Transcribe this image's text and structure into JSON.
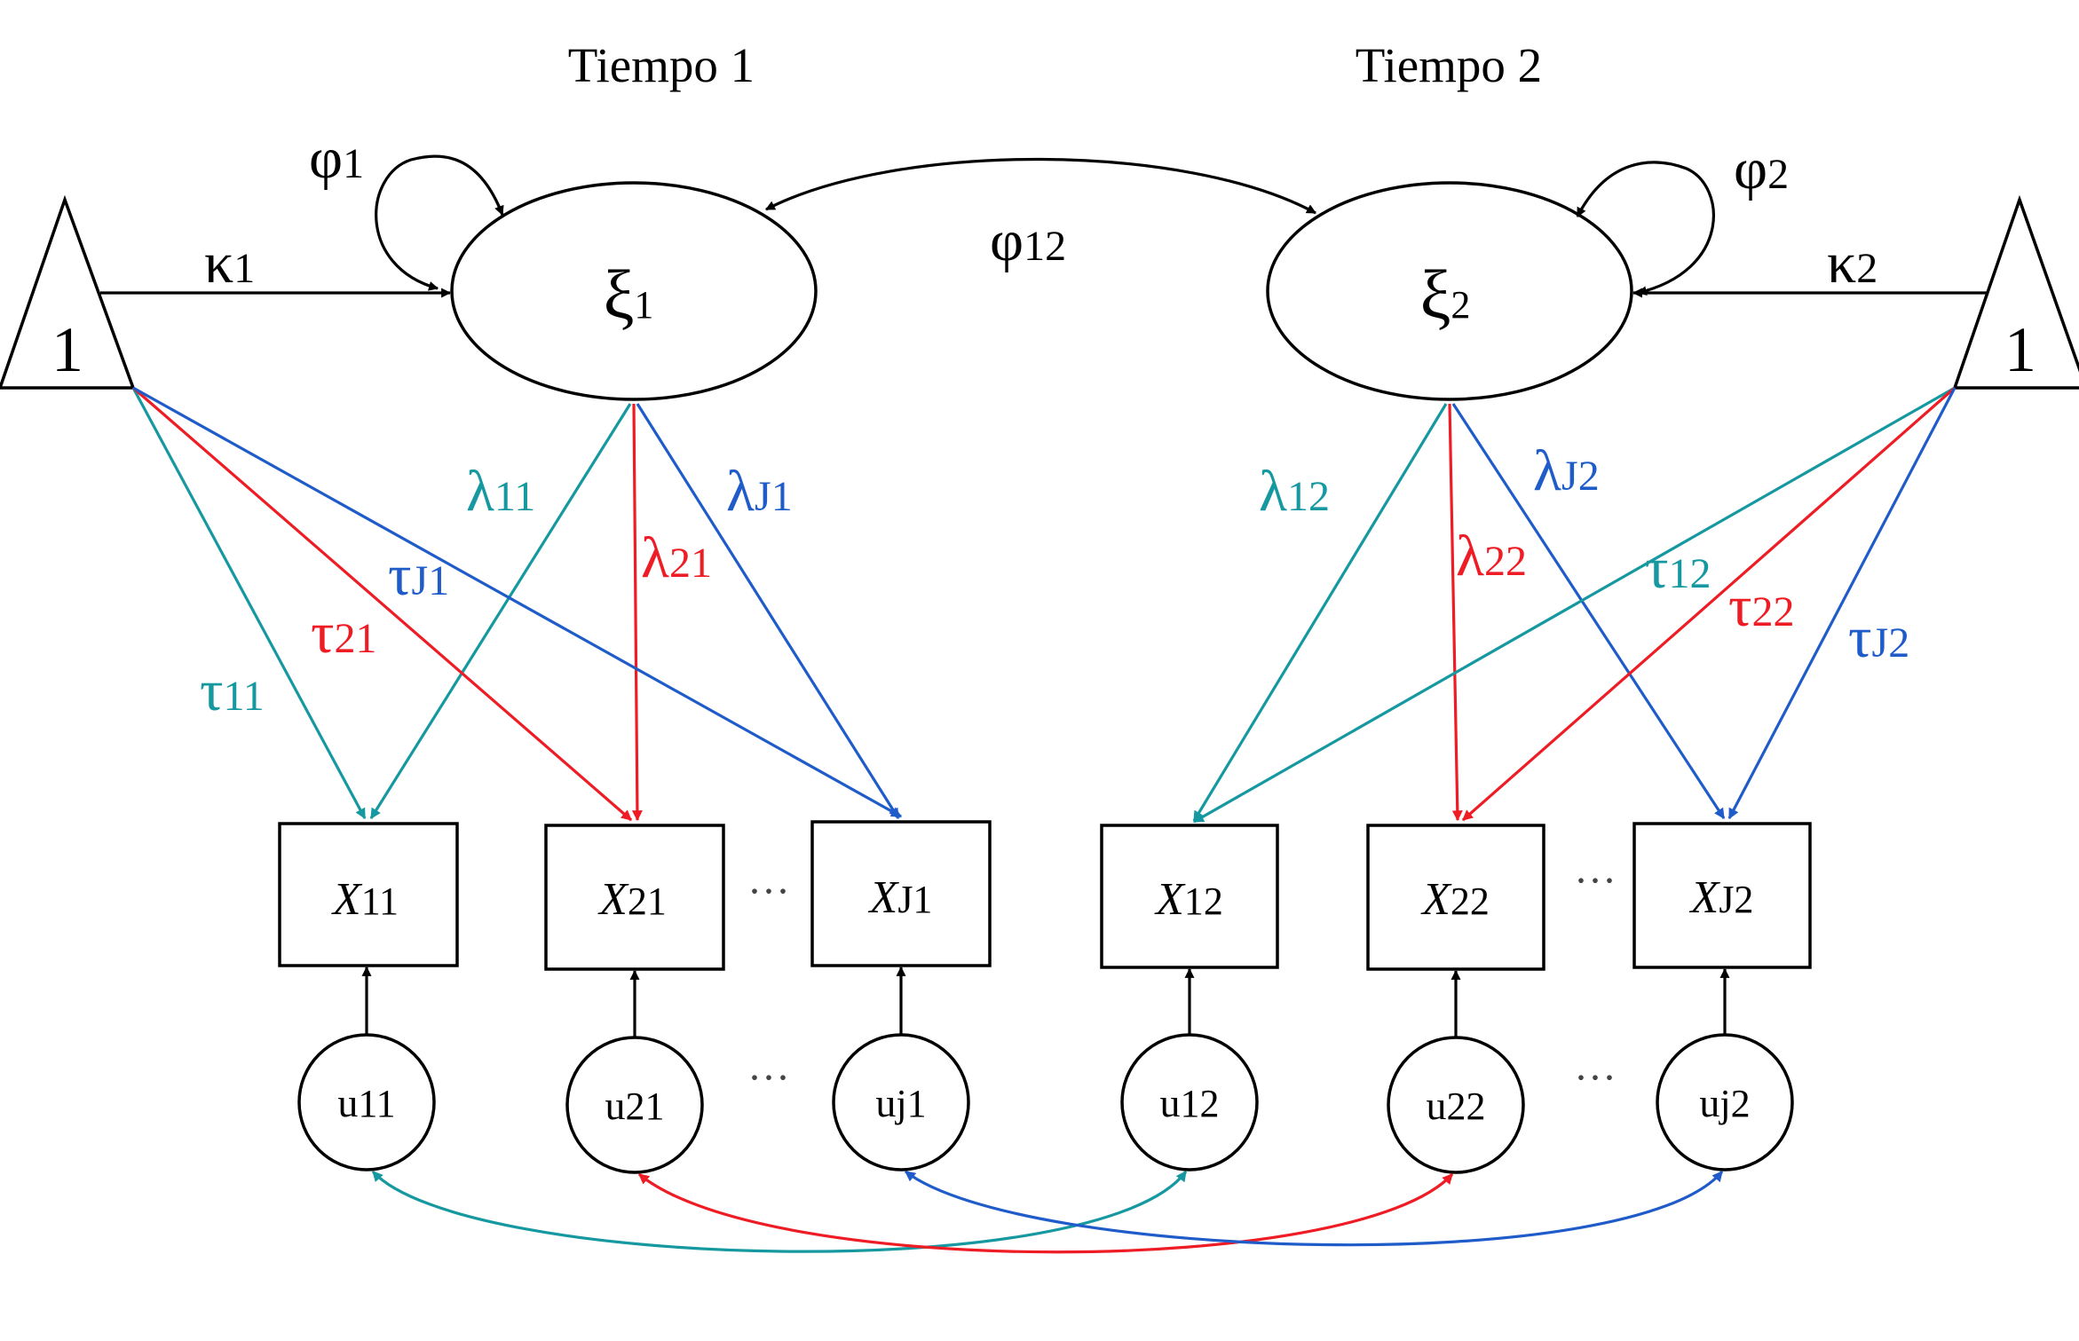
{
  "colors": {
    "teal": "#1598a0",
    "red": "#ee1c24",
    "blue": "#1f5cc9",
    "black": "#000000"
  },
  "titles": {
    "t1": "Tiempo 1",
    "t2": "Tiempo 2"
  },
  "intercept": {
    "left": "1",
    "right": "1"
  },
  "latent": {
    "xi1": {
      "sym": "ξ",
      "sub": "1"
    },
    "xi2": {
      "sym": "ξ",
      "sub": "2"
    }
  },
  "variance": {
    "phi1": {
      "sym": "φ",
      "sub": "1"
    },
    "phi2": {
      "sym": "φ",
      "sub": "2"
    },
    "phi12": {
      "sym": "φ",
      "sub": "12"
    }
  },
  "means": {
    "k1": {
      "sym": "κ",
      "sub": "1"
    },
    "k2": {
      "sym": "κ",
      "sub": "2"
    }
  },
  "loadings": {
    "l11": {
      "sym": "λ",
      "sub": "11"
    },
    "l21": {
      "sym": "λ",
      "sub": "21"
    },
    "lJ1": {
      "sym": "λ",
      "sub": "J1"
    },
    "l12": {
      "sym": "λ",
      "sub": "12"
    },
    "l22": {
      "sym": "λ",
      "sub": "22"
    },
    "lJ2": {
      "sym": "λ",
      "sub": "J2"
    }
  },
  "thresholds": {
    "t11": {
      "sym": "τ",
      "sub": "11"
    },
    "t21": {
      "sym": "τ",
      "sub": "21"
    },
    "tJ1": {
      "sym": "τ",
      "sub": "J1"
    },
    "t12": {
      "sym": "τ",
      "sub": "12"
    },
    "t22": {
      "sym": "τ",
      "sub": "22"
    },
    "tJ2": {
      "sym": "τ",
      "sub": "J2"
    }
  },
  "observed": {
    "x11": {
      "sym": "X",
      "sub": "11"
    },
    "x21": {
      "sym": "X",
      "sub": "21"
    },
    "xJ1": {
      "sym": "X",
      "sub": "J1"
    },
    "x12": {
      "sym": "X",
      "sub": "12"
    },
    "x22": {
      "sym": "X",
      "sub": "22"
    },
    "xJ2": {
      "sym": "X",
      "sub": "J2"
    }
  },
  "errors": {
    "u11": {
      "sym": "u",
      "sub": "11"
    },
    "u21": {
      "sym": "u",
      "sub": "21"
    },
    "uj1": {
      "sym": "u",
      "sub": "j1"
    },
    "u12": {
      "sym": "u",
      "sub": "12"
    },
    "u22": {
      "sym": "u",
      "sub": "22"
    },
    "uj2": {
      "sym": "u",
      "sub": "j2"
    }
  },
  "ellipsis": "···"
}
